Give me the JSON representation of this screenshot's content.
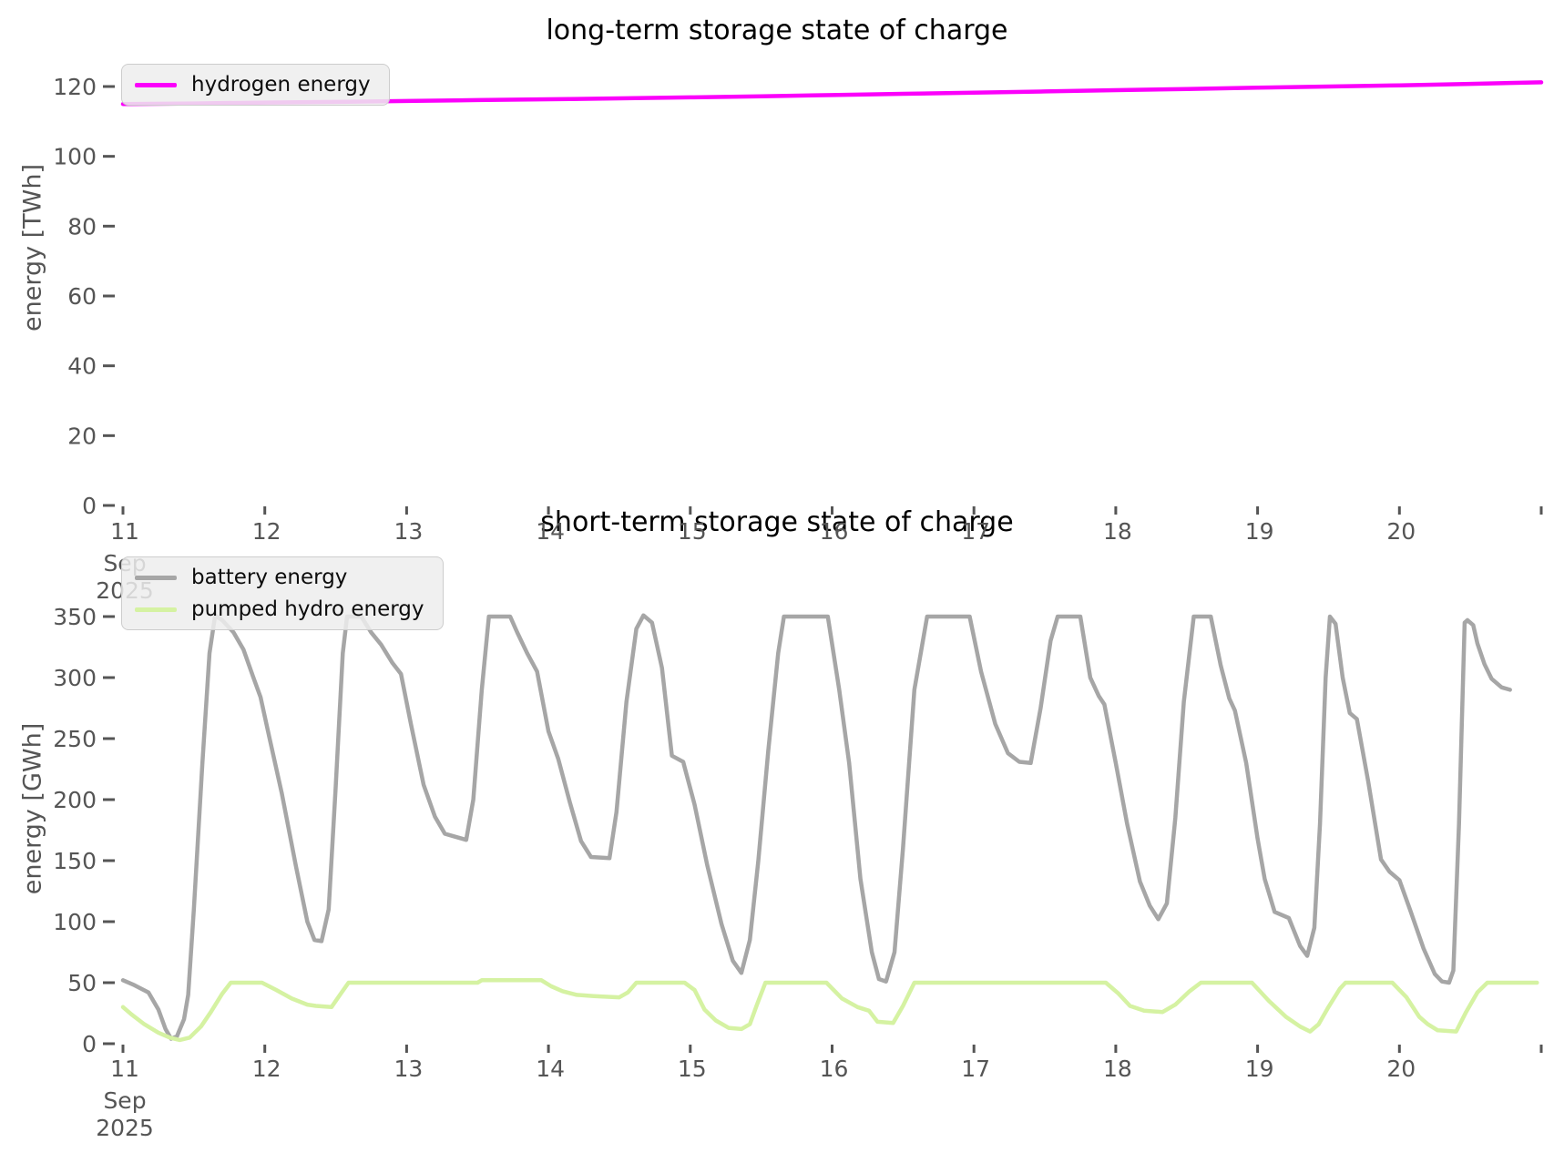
{
  "figure": {
    "tick_color": "#555555",
    "title_color": "#000000",
    "background": "#ffffff"
  },
  "chart_data": [
    {
      "type": "line",
      "title": "long-term storage state of charge",
      "ylabel": "energy [TWh]",
      "xlabel": "",
      "ylim": [
        0,
        128
      ],
      "yticks": [
        0,
        20,
        40,
        60,
        80,
        100,
        120
      ],
      "xlim": [
        11,
        21.08
      ],
      "xticks": [
        11,
        12,
        13,
        14,
        15,
        16,
        17,
        18,
        19,
        20,
        21
      ],
      "xticklabels": [
        "11",
        "12",
        "13",
        "14",
        "15",
        "16",
        "17",
        "18",
        "19",
        "20",
        ""
      ],
      "x_sub_labels": [
        "Sep",
        "2025"
      ],
      "grid": false,
      "legend_position": "upper-left",
      "series": [
        {
          "name": "hydrogen energy",
          "color": "#fb00fb",
          "points": [
            [
              11.0,
              115.0
            ],
            [
              11.5,
              115.15
            ],
            [
              12.0,
              115.4
            ],
            [
              12.5,
              115.6
            ],
            [
              13.0,
              115.85
            ],
            [
              13.5,
              116.1
            ],
            [
              14.0,
              116.35
            ],
            [
              14.5,
              116.6
            ],
            [
              15.0,
              116.9
            ],
            [
              15.5,
              117.2
            ],
            [
              16.0,
              117.55
            ],
            [
              16.5,
              117.9
            ],
            [
              17.0,
              118.25
            ],
            [
              17.5,
              118.6
            ],
            [
              18.0,
              118.95
            ],
            [
              18.5,
              119.3
            ],
            [
              19.0,
              119.65
            ],
            [
              19.5,
              120.0
            ],
            [
              20.0,
              120.35
            ],
            [
              20.5,
              120.75
            ],
            [
              21.0,
              121.2
            ]
          ]
        }
      ]
    },
    {
      "type": "line",
      "title": "short-term storage state of charge",
      "ylabel": "energy [GWh]",
      "xlabel": "",
      "ylim": [
        0,
        368
      ],
      "yticks": [
        0,
        50,
        100,
        150,
        200,
        250,
        300,
        350
      ],
      "xlim": [
        11,
        21.08
      ],
      "xticks": [
        11,
        12,
        13,
        14,
        15,
        16,
        17,
        18,
        19,
        20,
        21
      ],
      "xticklabels": [
        "11",
        "12",
        "13",
        "14",
        "15",
        "16",
        "17",
        "18",
        "19",
        "20",
        ""
      ],
      "x_sub_labels": [
        "Sep",
        "2025"
      ],
      "grid": false,
      "legend_position": "upper-left",
      "series": [
        {
          "name": "battery energy",
          "color": "#a6a6a6",
          "points": [
            [
              11.0,
              52
            ],
            [
              11.08,
              48
            ],
            [
              11.18,
              42
            ],
            [
              11.25,
              28
            ],
            [
              11.3,
              12
            ],
            [
              11.34,
              4
            ],
            [
              11.38,
              6
            ],
            [
              11.43,
              20
            ],
            [
              11.46,
              40
            ],
            [
              11.5,
              110
            ],
            [
              11.56,
              230
            ],
            [
              11.61,
              320
            ],
            [
              11.65,
              351
            ],
            [
              11.7,
              347
            ],
            [
              11.78,
              337
            ],
            [
              11.85,
              323
            ],
            [
              11.92,
              300
            ],
            [
              11.97,
              284
            ],
            [
              12.03,
              252
            ],
            [
              12.12,
              205
            ],
            [
              12.22,
              145
            ],
            [
              12.3,
              100
            ],
            [
              12.35,
              85
            ],
            [
              12.4,
              84
            ],
            [
              12.45,
              110
            ],
            [
              12.5,
              210
            ],
            [
              12.55,
              320
            ],
            [
              12.58,
              350
            ],
            [
              12.68,
              350
            ],
            [
              12.75,
              337
            ],
            [
              12.82,
              327
            ],
            [
              12.9,
              312
            ],
            [
              12.96,
              303
            ],
            [
              13.03,
              262
            ],
            [
              13.12,
              212
            ],
            [
              13.2,
              186
            ],
            [
              13.27,
              172
            ],
            [
              13.33,
              170
            ],
            [
              13.42,
              167
            ],
            [
              13.47,
              200
            ],
            [
              13.53,
              290
            ],
            [
              13.58,
              350
            ],
            [
              13.73,
              350
            ],
            [
              13.78,
              337
            ],
            [
              13.85,
              320
            ],
            [
              13.92,
              305
            ],
            [
              14.0,
              256
            ],
            [
              14.07,
              233
            ],
            [
              14.15,
              198
            ],
            [
              14.23,
              166
            ],
            [
              14.3,
              153
            ],
            [
              14.43,
              152
            ],
            [
              14.48,
              190
            ],
            [
              14.55,
              280
            ],
            [
              14.62,
              340
            ],
            [
              14.67,
              351
            ],
            [
              14.73,
              345
            ],
            [
              14.8,
              308
            ],
            [
              14.87,
              236
            ],
            [
              14.95,
              231
            ],
            [
              15.03,
              196
            ],
            [
              15.12,
              146
            ],
            [
              15.22,
              98
            ],
            [
              15.3,
              68
            ],
            [
              15.36,
              58
            ],
            [
              15.42,
              85
            ],
            [
              15.48,
              150
            ],
            [
              15.55,
              240
            ],
            [
              15.62,
              320
            ],
            [
              15.66,
              350
            ],
            [
              15.97,
              350
            ],
            [
              16.05,
              290
            ],
            [
              16.12,
              230
            ],
            [
              16.2,
              135
            ],
            [
              16.28,
              75
            ],
            [
              16.33,
              53
            ],
            [
              16.38,
              51
            ],
            [
              16.44,
              75
            ],
            [
              16.5,
              160
            ],
            [
              16.58,
              290
            ],
            [
              16.67,
              350
            ],
            [
              16.97,
              350
            ],
            [
              17.05,
              305
            ],
            [
              17.15,
              262
            ],
            [
              17.24,
              238
            ],
            [
              17.32,
              231
            ],
            [
              17.4,
              230
            ],
            [
              17.47,
              275
            ],
            [
              17.54,
              330
            ],
            [
              17.59,
              350
            ],
            [
              17.75,
              350
            ],
            [
              17.82,
              300
            ],
            [
              17.88,
              285
            ],
            [
              17.92,
              278
            ],
            [
              18.0,
              230
            ],
            [
              18.08,
              180
            ],
            [
              18.17,
              133
            ],
            [
              18.24,
              113
            ],
            [
              18.3,
              102
            ],
            [
              18.36,
              115
            ],
            [
              18.42,
              185
            ],
            [
              18.48,
              280
            ],
            [
              18.55,
              350
            ],
            [
              18.67,
              350
            ],
            [
              18.74,
              310
            ],
            [
              18.8,
              283
            ],
            [
              18.84,
              273
            ],
            [
              18.92,
              230
            ],
            [
              19.0,
              168
            ],
            [
              19.05,
              135
            ],
            [
              19.12,
              108
            ],
            [
              19.22,
              103
            ],
            [
              19.3,
              80
            ],
            [
              19.35,
              72
            ],
            [
              19.4,
              95
            ],
            [
              19.44,
              180
            ],
            [
              19.48,
              300
            ],
            [
              19.51,
              350
            ],
            [
              19.55,
              344
            ],
            [
              19.6,
              300
            ],
            [
              19.65,
              271
            ],
            [
              19.7,
              266
            ],
            [
              19.78,
              215
            ],
            [
              19.87,
              151
            ],
            [
              19.93,
              141
            ],
            [
              20.0,
              134
            ],
            [
              20.08,
              108
            ],
            [
              20.17,
              78
            ],
            [
              20.25,
              57
            ],
            [
              20.3,
              51
            ],
            [
              20.35,
              50
            ],
            [
              20.38,
              60
            ],
            [
              20.42,
              180
            ],
            [
              20.46,
              345
            ],
            [
              20.48,
              347
            ],
            [
              20.52,
              343
            ],
            [
              20.55,
              328
            ],
            [
              20.6,
              311
            ],
            [
              20.65,
              299
            ],
            [
              20.72,
              292
            ],
            [
              20.78,
              290
            ]
          ]
        },
        {
          "name": "pumped hydro energy",
          "color": "#d5f2a2",
          "points": [
            [
              11.0,
              30
            ],
            [
              11.06,
              24
            ],
            [
              11.15,
              16
            ],
            [
              11.25,
              9
            ],
            [
              11.33,
              5
            ],
            [
              11.4,
              3
            ],
            [
              11.47,
              5
            ],
            [
              11.55,
              14
            ],
            [
              11.62,
              26
            ],
            [
              11.7,
              41
            ],
            [
              11.76,
              50
            ],
            [
              11.98,
              50
            ],
            [
              12.08,
              44
            ],
            [
              12.19,
              37
            ],
            [
              12.3,
              32
            ],
            [
              12.36,
              31
            ],
            [
              12.47,
              30
            ],
            [
              12.53,
              40
            ],
            [
              12.59,
              50
            ],
            [
              13.5,
              50
            ],
            [
              13.53,
              52
            ],
            [
              13.95,
              52
            ],
            [
              14.02,
              47
            ],
            [
              14.1,
              43
            ],
            [
              14.2,
              40
            ],
            [
              14.32,
              39
            ],
            [
              14.5,
              38
            ],
            [
              14.56,
              42
            ],
            [
              14.62,
              50
            ],
            [
              14.96,
              50
            ],
            [
              15.03,
              44
            ],
            [
              15.1,
              28
            ],
            [
              15.18,
              19
            ],
            [
              15.27,
              13
            ],
            [
              15.36,
              12
            ],
            [
              15.42,
              16
            ],
            [
              15.47,
              32
            ],
            [
              15.53,
              50
            ],
            [
              15.96,
              50
            ],
            [
              16.07,
              37
            ],
            [
              16.18,
              30
            ],
            [
              16.26,
              27
            ],
            [
              16.32,
              18
            ],
            [
              16.43,
              17
            ],
            [
              16.5,
              31
            ],
            [
              16.58,
              50
            ],
            [
              17.93,
              50
            ],
            [
              18.02,
              41
            ],
            [
              18.1,
              31
            ],
            [
              18.2,
              27
            ],
            [
              18.33,
              26
            ],
            [
              18.42,
              32
            ],
            [
              18.52,
              43
            ],
            [
              18.6,
              50
            ],
            [
              18.96,
              50
            ],
            [
              19.08,
              35
            ],
            [
              19.2,
              22
            ],
            [
              19.3,
              14
            ],
            [
              19.37,
              10
            ],
            [
              19.43,
              16
            ],
            [
              19.5,
              30
            ],
            [
              19.58,
              45
            ],
            [
              19.62,
              50
            ],
            [
              19.95,
              50
            ],
            [
              20.05,
              38
            ],
            [
              20.14,
              22
            ],
            [
              20.2,
              16
            ],
            [
              20.27,
              11
            ],
            [
              20.4,
              10
            ],
            [
              20.47,
              26
            ],
            [
              20.55,
              42
            ],
            [
              20.62,
              50
            ],
            [
              20.97,
              50
            ]
          ]
        }
      ]
    }
  ]
}
